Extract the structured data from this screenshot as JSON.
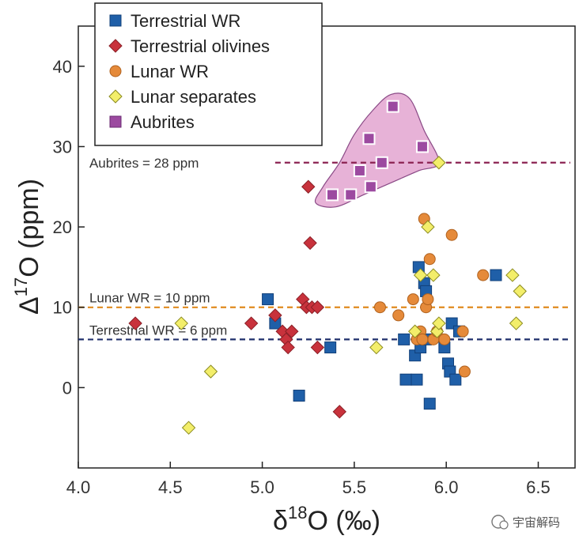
{
  "chart_data": {
    "type": "scatter",
    "xlabel_prefix": "δ",
    "xlabel_sup": "18",
    "xlabel_suffix": "O (‰)",
    "ylabel_prefix": "Δ",
    "ylabel_sup": "17",
    "ylabel_suffix": "O (ppm)",
    "xlim": [
      4.0,
      6.7
    ],
    "ylim": [
      -10,
      45
    ],
    "x_ticks": [
      4.0,
      4.5,
      5.0,
      5.5,
      6.0,
      6.5
    ],
    "x_tick_labels": [
      "4.0",
      "4.5",
      "5.0",
      "5.5",
      "6.0",
      "6.5"
    ],
    "y_ticks": [
      0,
      10,
      20,
      30,
      40
    ],
    "y_tick_labels": [
      "0",
      "10",
      "20",
      "30",
      "40"
    ],
    "legend_position": "top-left",
    "reference_lines": [
      {
        "label": "Aubrites = 28 ppm",
        "y": 28,
        "x_start": 5.07,
        "color": "#8b2252",
        "label_x": 4.06
      },
      {
        "label": "Lunar WR = 10 ppm",
        "y": 10,
        "x_start": 4.0,
        "color": "#e08a1e",
        "label_x": 4.06
      },
      {
        "label": "Terrestrial WR = 6 ppm",
        "y": 6,
        "x_start": 4.0,
        "color": "#1f2f6b",
        "label_x": 4.06
      }
    ],
    "aubrites_region": [
      [
        5.33,
        25
      ],
      [
        5.42,
        28
      ],
      [
        5.5,
        31.5
      ],
      [
        5.6,
        34.5
      ],
      [
        5.7,
        36.5
      ],
      [
        5.8,
        36
      ],
      [
        5.88,
        32
      ],
      [
        5.96,
        28
      ],
      [
        5.85,
        27
      ],
      [
        5.7,
        25.5
      ],
      [
        5.55,
        24
      ],
      [
        5.4,
        22.5
      ],
      [
        5.29,
        23
      ]
    ],
    "series": [
      {
        "name": "Terrestrial WR",
        "marker": "square",
        "color": "#1f5fa8",
        "edge": "#12407a",
        "points": [
          [
            5.03,
            11
          ],
          [
            5.07,
            8
          ],
          [
            5.37,
            5
          ],
          [
            5.2,
            -1
          ],
          [
            5.77,
            6
          ],
          [
            5.78,
            1
          ],
          [
            5.83,
            4
          ],
          [
            5.84,
            1
          ],
          [
            5.85,
            15
          ],
          [
            5.86,
            5
          ],
          [
            5.88,
            13
          ],
          [
            5.89,
            12
          ],
          [
            5.91,
            -2
          ],
          [
            5.89,
            6
          ],
          [
            5.99,
            5
          ],
          [
            6.01,
            3
          ],
          [
            6.02,
            2
          ],
          [
            6.03,
            8
          ],
          [
            6.05,
            1
          ],
          [
            6.07,
            7
          ],
          [
            6.27,
            14
          ]
        ]
      },
      {
        "name": "Terrestrial olivines",
        "marker": "diamond",
        "color": "#c8323c",
        "edge": "#8a1f26",
        "points": [
          [
            4.31,
            8
          ],
          [
            4.94,
            8
          ],
          [
            5.07,
            9
          ],
          [
            5.11,
            7
          ],
          [
            5.13,
            6
          ],
          [
            5.14,
            5
          ],
          [
            5.16,
            7
          ],
          [
            5.22,
            11
          ],
          [
            5.24,
            10
          ],
          [
            5.25,
            25
          ],
          [
            5.26,
            18
          ],
          [
            5.27,
            10
          ],
          [
            5.3,
            5
          ],
          [
            5.3,
            10
          ],
          [
            5.42,
            -3
          ]
        ]
      },
      {
        "name": "Lunar WR",
        "marker": "circle",
        "color": "#e58a3a",
        "edge": "#b0621f",
        "points": [
          [
            5.64,
            10
          ],
          [
            5.74,
            9
          ],
          [
            5.82,
            11
          ],
          [
            5.84,
            6
          ],
          [
            5.86,
            7
          ],
          [
            5.87,
            6
          ],
          [
            5.88,
            21
          ],
          [
            5.89,
            10
          ],
          [
            5.9,
            11
          ],
          [
            5.91,
            16
          ],
          [
            5.93,
            6
          ],
          [
            5.95,
            7
          ],
          [
            5.99,
            6
          ],
          [
            6.03,
            19
          ],
          [
            6.09,
            7
          ],
          [
            6.1,
            2
          ],
          [
            6.2,
            14
          ]
        ]
      },
      {
        "name": "Lunar separates",
        "marker": "diamond",
        "color": "#f3ee6a",
        "edge": "#8a8a20",
        "points": [
          [
            4.56,
            8
          ],
          [
            4.6,
            -5
          ],
          [
            4.72,
            2
          ],
          [
            5.62,
            5
          ],
          [
            5.83,
            7
          ],
          [
            5.86,
            14
          ],
          [
            5.9,
            20
          ],
          [
            5.93,
            14
          ],
          [
            5.95,
            7
          ],
          [
            5.96,
            8
          ],
          [
            5.96,
            28
          ],
          [
            6.36,
            14
          ],
          [
            6.38,
            8
          ],
          [
            6.4,
            12
          ]
        ]
      },
      {
        "name": "Aubrites",
        "marker": "square",
        "color": "#9c4aa0",
        "edge": "#ffffff",
        "points": [
          [
            5.38,
            24
          ],
          [
            5.48,
            24
          ],
          [
            5.53,
            27
          ],
          [
            5.58,
            31
          ],
          [
            5.59,
            25
          ],
          [
            5.65,
            28
          ],
          [
            5.71,
            35
          ],
          [
            5.87,
            30
          ]
        ]
      }
    ]
  },
  "watermark": {
    "text": "宇宙解码"
  }
}
